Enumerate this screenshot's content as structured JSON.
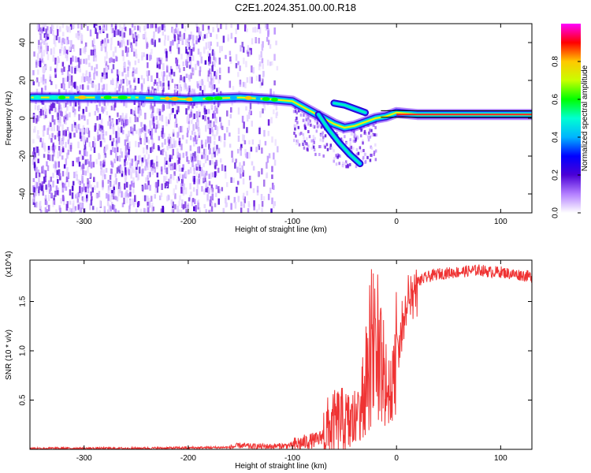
{
  "title": "C2E1.2024.351.00.00.R18",
  "chart_data": [
    {
      "type": "heatmap",
      "title": "C2E1.2024.351.00.00.R18",
      "xlabel": "Height of straight line (km)",
      "ylabel": "Frequency (Hz)",
      "xlim": [
        -352,
        130
      ],
      "ylim": [
        -50,
        50
      ],
      "xticks": [
        -300,
        -200,
        -100,
        0,
        100
      ],
      "yticks": [
        -40,
        -20,
        0,
        20,
        40
      ],
      "colorbar": {
        "label": "Normalized spectral amplitude",
        "range": [
          0,
          1
        ],
        "ticks": [
          "0.0",
          "0.2",
          "0.4",
          "0.6",
          "0.8"
        ],
        "colormap": [
          "#ffffff",
          "#b37fff",
          "#4b00d6",
          "#0000ff",
          "#00b4ff",
          "#00ffd2",
          "#00ff00",
          "#c8ff00",
          "#ffc800",
          "#ff0000",
          "#ff00ff"
        ]
      },
      "ridge": {
        "description": "dominant frequency track",
        "x": [
          -350,
          -300,
          -250,
          -200,
          -150,
          -120,
          -100,
          -90,
          -80,
          -70,
          -60,
          -50,
          -40,
          -30,
          -20,
          -10,
          0,
          20,
          50,
          80,
          100,
          130
        ],
        "y": [
          11,
          11,
          11,
          10,
          11,
          10,
          9,
          6,
          3,
          0,
          -3,
          -5,
          -4,
          -2,
          0,
          1,
          3,
          2,
          2,
          2,
          2,
          2
        ]
      },
      "secondary_tracks": [
        {
          "x": [
            -75,
            -65,
            -55,
            -45,
            -35
          ],
          "y": [
            2,
            -6,
            -13,
            -19,
            -24
          ]
        },
        {
          "x": [
            -60,
            -50,
            -40,
            -30
          ],
          "y": [
            8,
            7,
            5,
            3
          ]
        }
      ],
      "noise_extent_x": [
        -350,
        -115
      ]
    },
    {
      "type": "line",
      "title": "",
      "xlabel": "Height of straight line (km)",
      "ylabel": "SNR (10 * v/v)",
      "multiplier": "(x10^4)",
      "xlim": [
        -352,
        130
      ],
      "ylim": [
        0,
        1.92
      ],
      "xticks": [
        -300,
        -200,
        -100,
        0,
        100
      ],
      "yticks": [
        "0.5",
        "1.0",
        "1.5"
      ],
      "color": "#ef3333",
      "series": [
        {
          "name": "",
          "x": [
            -352,
            -300,
            -250,
            -200,
            -160,
            -150,
            -140,
            -120,
            -100,
            -85,
            -75,
            -65,
            -55,
            -45,
            -35,
            -30,
            -25,
            -20,
            -15,
            -10,
            -5,
            0,
            10,
            20,
            30,
            40,
            60,
            80,
            90,
            100,
            110,
            120,
            130
          ],
          "y": [
            0.01,
            0.01,
            0.01,
            0.015,
            0.02,
            0.04,
            0.03,
            0.03,
            0.04,
            0.08,
            0.1,
            0.2,
            0.3,
            0.25,
            0.35,
            0.7,
            1.0,
            1.2,
            0.9,
            0.6,
            0.5,
            1.0,
            1.45,
            1.7,
            1.75,
            1.78,
            1.8,
            1.82,
            1.8,
            1.8,
            1.78,
            1.77,
            1.75
          ]
        }
      ]
    }
  ]
}
